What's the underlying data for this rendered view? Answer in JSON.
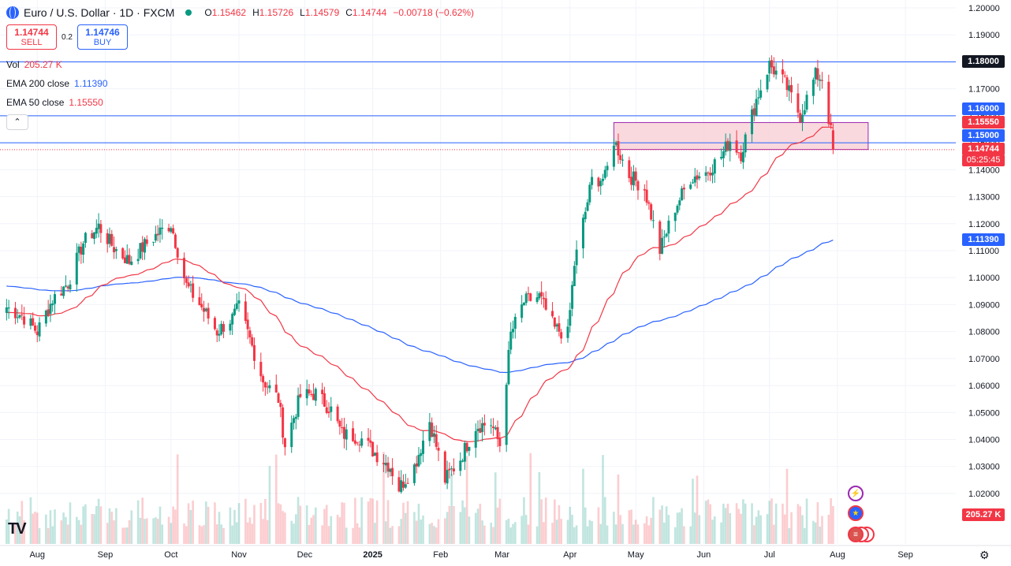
{
  "header": {
    "title": "Euro / U.S. Dollar · 1D · FXCM",
    "open_label": "O",
    "open": "1.15462",
    "high_label": "H",
    "high": "1.15726",
    "low_label": "L",
    "low": "1.14579",
    "close_label": "C",
    "close": "1.14744",
    "change": "−0.00718 (−0.62%)"
  },
  "trade": {
    "sell_price": "1.14744",
    "sell_label": "SELL",
    "spread": "0.2",
    "buy_price": "1.14746",
    "buy_label": "BUY"
  },
  "indicators": {
    "vol_label": "Vol",
    "vol_value": "205.27 K",
    "ema200_label": "EMA 200 close",
    "ema200_value": "1.11390",
    "ema50_label": "EMA 50 close",
    "ema50_value": "1.15550"
  },
  "collapse_icon": "chevron-up-icon",
  "price_tags": {
    "resistance": "1.18000",
    "level_high": "1.16000",
    "ema50": "1.15550",
    "level_low": "1.15000",
    "last_price": "1.14744",
    "countdown": "05:25:45",
    "ema200": "1.11390",
    "volume": "205.27 K"
  },
  "colors": {
    "up": "#089981",
    "down": "#f23645",
    "ema50": "#f23645",
    "ema200": "#2962ff",
    "zone_fill": "#f8d0d6",
    "zone_border": "#9c27b0",
    "hline": "#2962ff"
  },
  "logo": "TV",
  "chart_data": {
    "type": "candlestick",
    "y_ticks": [
      "1.20000",
      "1.19000",
      "1.18000",
      "1.17000",
      "1.16000",
      "1.15000",
      "1.14000",
      "1.13000",
      "1.12000",
      "1.11000",
      "1.10000",
      "1.09000",
      "1.08000",
      "1.07000",
      "1.06000",
      "1.05000",
      "1.04000",
      "1.03000",
      "1.02000"
    ],
    "x_ticks": [
      "Aug",
      "Sep",
      "Oct",
      "Nov",
      "Dec",
      "2025",
      "Feb",
      "Mar",
      "Apr",
      "May",
      "Jun",
      "Jul",
      "Aug",
      "Sep"
    ],
    "horizontal_lines": [
      1.18,
      1.16,
      1.15
    ],
    "zone": {
      "top": 1.1575,
      "bottom": 1.1475,
      "from": "2025-04-21",
      "to": "2025-08-15"
    },
    "ema50_last": 1.1555,
    "ema200_last": 1.1139,
    "last_close": 1.14744,
    "volume_last": "205.27K",
    "anchors": [
      [
        "2024-07-18",
        1.089
      ],
      [
        "2024-07-25",
        1.086
      ],
      [
        "2024-08-01",
        1.08
      ],
      [
        "2024-08-08",
        1.092
      ],
      [
        "2024-08-15",
        1.098
      ],
      [
        "2024-08-22",
        1.113
      ],
      [
        "2024-08-29",
        1.119
      ],
      [
        "2024-09-05",
        1.111
      ],
      [
        "2024-09-12",
        1.106
      ],
      [
        "2024-09-19",
        1.112
      ],
      [
        "2024-09-26",
        1.117
      ],
      [
        "2024-10-01",
        1.12
      ],
      [
        "2024-10-08",
        1.097
      ],
      [
        "2024-10-15",
        1.089
      ],
      [
        "2024-10-22",
        1.08
      ],
      [
        "2024-10-29",
        1.085
      ],
      [
        "2024-11-01",
        1.089
      ],
      [
        "2024-11-06",
        1.077
      ],
      [
        "2024-11-12",
        1.062
      ],
      [
        "2024-11-19",
        1.055
      ],
      [
        "2024-11-22",
        1.038
      ],
      [
        "2024-11-29",
        1.056
      ],
      [
        "2024-12-06",
        1.057
      ],
      [
        "2024-12-13",
        1.051
      ],
      [
        "2024-12-18",
        1.042
      ],
      [
        "2024-12-26",
        1.041
      ],
      [
        "2025-01-02",
        1.035
      ],
      [
        "2025-01-09",
        1.03
      ],
      [
        "2025-01-13",
        1.022
      ],
      [
        "2025-01-20",
        1.03
      ],
      [
        "2025-01-27",
        1.047
      ],
      [
        "2025-02-03",
        1.025
      ],
      [
        "2025-02-10",
        1.033
      ],
      [
        "2025-02-17",
        1.045
      ],
      [
        "2025-02-24",
        1.046
      ],
      [
        "2025-02-28",
        1.038
      ],
      [
        "2025-03-05",
        1.079
      ],
      [
        "2025-03-11",
        1.091
      ],
      [
        "2025-03-18",
        1.093
      ],
      [
        "2025-03-25",
        1.081
      ],
      [
        "2025-03-31",
        1.079
      ],
      [
        "2025-04-03",
        1.105
      ],
      [
        "2025-04-11",
        1.136
      ],
      [
        "2025-04-17",
        1.137
      ],
      [
        "2025-04-21",
        1.151
      ],
      [
        "2025-04-28",
        1.138
      ],
      [
        "2025-05-05",
        1.133
      ],
      [
        "2025-05-12",
        1.11
      ],
      [
        "2025-05-19",
        1.126
      ],
      [
        "2025-05-26",
        1.137
      ],
      [
        "2025-06-02",
        1.139
      ],
      [
        "2025-06-09",
        1.145
      ],
      [
        "2025-06-13",
        1.151
      ],
      [
        "2025-06-18",
        1.146
      ],
      [
        "2025-06-25",
        1.166
      ],
      [
        "2025-07-01",
        1.179
      ],
      [
        "2025-07-08",
        1.172
      ],
      [
        "2025-07-15",
        1.16
      ],
      [
        "2025-07-22",
        1.175
      ],
      [
        "2025-07-25",
        1.174
      ],
      [
        "2025-07-28",
        1.159
      ],
      [
        "2025-07-29",
        1.154
      ],
      [
        "2025-07-30",
        1.1474
      ]
    ]
  }
}
